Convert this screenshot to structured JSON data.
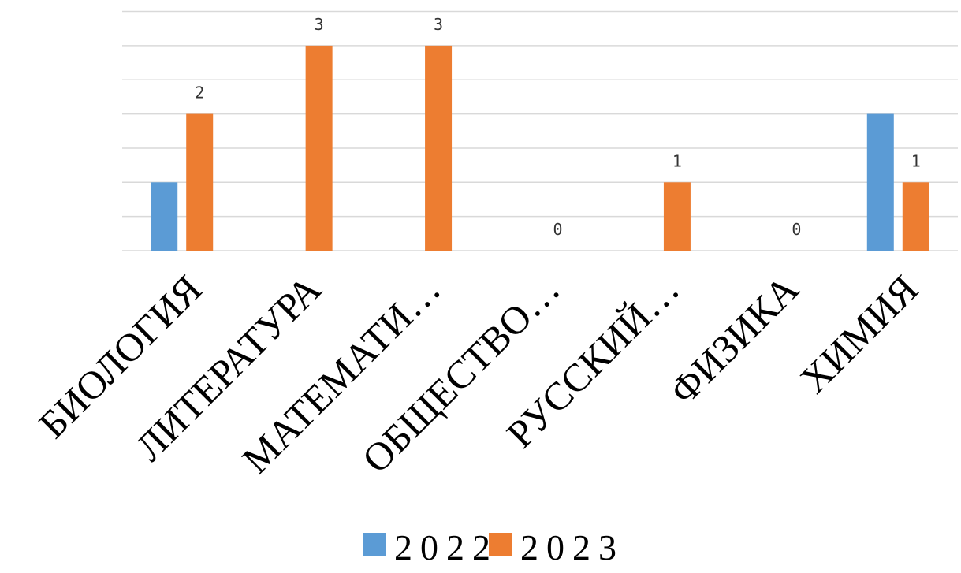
{
  "chart_data": {
    "type": "bar",
    "categories": [
      "БИОЛОГИЯ",
      "ЛИТЕРАТУРА",
      "МАТЕМАТИ…",
      "ОБЩЕСТВО…",
      "РУССКИЙ…",
      "ФИЗИКА",
      "ХИМИЯ"
    ],
    "series": [
      {
        "name": "2022",
        "color": "#5B9BD5",
        "values": [
          1,
          0,
          0,
          0,
          0,
          0,
          2
        ]
      },
      {
        "name": "2023",
        "color": "#ED7D31",
        "values": [
          2,
          3,
          3,
          0,
          1,
          0,
          1
        ]
      }
    ],
    "data_labels": [
      {
        "category": "ЛИТЕРАТУРА",
        "series": "2023",
        "text": "3"
      },
      {
        "category": "МАТЕМАТИ…",
        "series": "2023",
        "text": "3"
      },
      {
        "category": "БИОЛОГИЯ",
        "series": "2023",
        "text": "2"
      },
      {
        "category": "ОБЩЕСТВО…",
        "series": "2023",
        "text": "0"
      },
      {
        "category": "РУССКИЙ…",
        "series": "2023",
        "text": "1"
      },
      {
        "category": "ФИЗИКА",
        "series": "2023",
        "text": "0"
      },
      {
        "category": "ХИМИЯ",
        "series": "2023",
        "text": "1"
      }
    ],
    "ylim": [
      0,
      3.5
    ],
    "grid": true,
    "legend_position": "bottom",
    "title": "",
    "xlabel": "",
    "ylabel": ""
  }
}
